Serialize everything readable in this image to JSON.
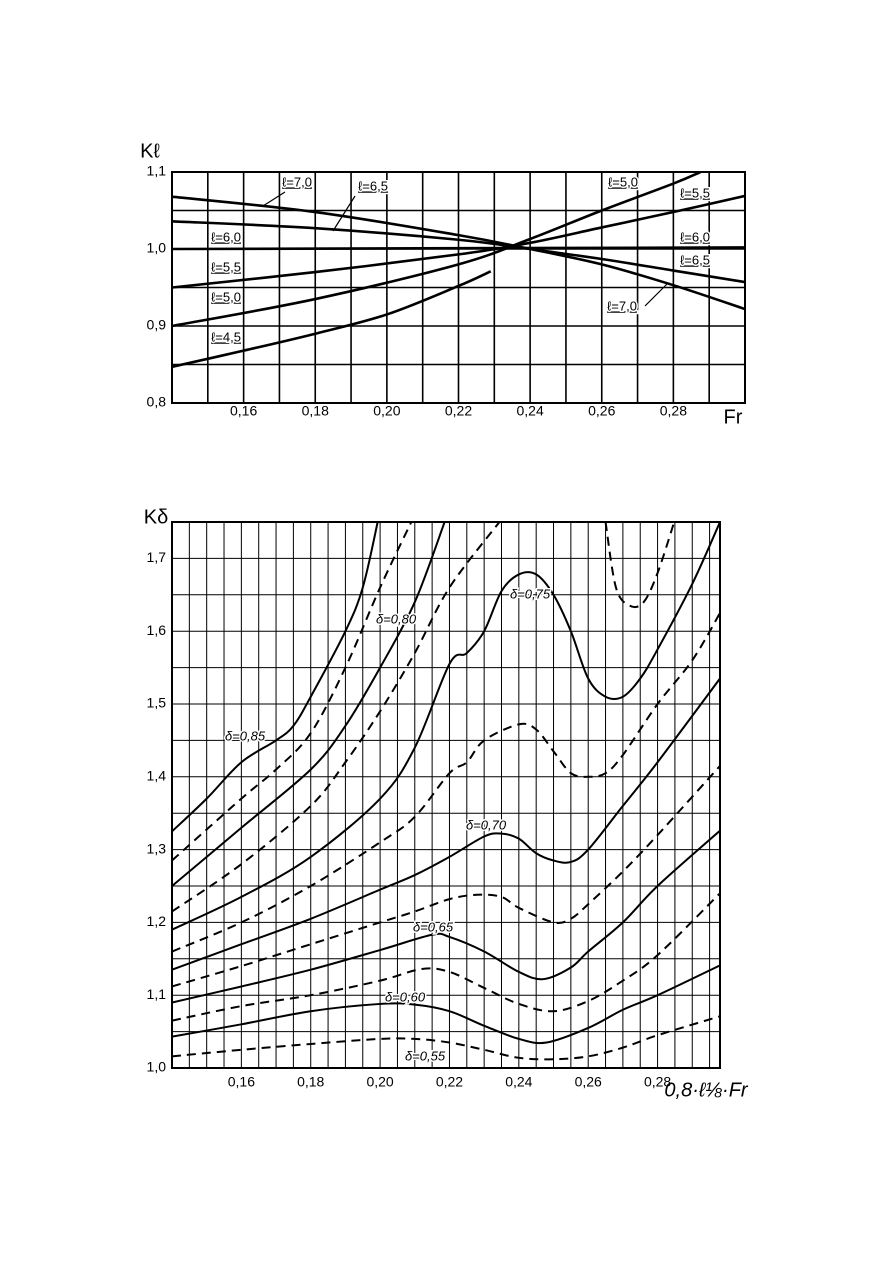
{
  "chart_data": [
    {
      "type": "line",
      "ylabel": "Kℓ",
      "xlabel": "Fr",
      "xlim": [
        0.14,
        0.3
      ],
      "ylim": [
        0.8,
        1.1
      ],
      "xticks": [
        {
          "value": 0.16,
          "label": "0,16"
        },
        {
          "value": 0.18,
          "label": "0,18"
        },
        {
          "value": 0.2,
          "label": "0,20"
        },
        {
          "value": 0.22,
          "label": "0,22"
        },
        {
          "value": 0.24,
          "label": "0,24"
        },
        {
          "value": 0.26,
          "label": "0,26"
        },
        {
          "value": 0.28,
          "label": "0,28"
        }
      ],
      "yticks": [
        {
          "value": 0.8,
          "label": "0,8"
        },
        {
          "value": 0.9,
          "label": "0,9"
        },
        {
          "value": 1.0,
          "label": "1,0"
        },
        {
          "value": 1.1,
          "label": "1,1"
        }
      ],
      "xgrid": [
        0.15,
        0.17,
        0.19,
        0.21,
        0.23,
        0.25,
        0.27,
        0.29
      ],
      "ygrid": [
        0.85,
        0.95,
        1.05
      ],
      "grid": true,
      "series": [
        {
          "name": "ℓ=7,0",
          "color": "#000",
          "x": [
            0.14,
            0.18,
            0.22,
            0.24,
            0.26,
            0.28,
            0.3
          ],
          "values": [
            1.068,
            1.048,
            1.018,
            1.0,
            0.98,
            0.953,
            0.922
          ]
        },
        {
          "name": "ℓ=6,5",
          "color": "#000",
          "x": [
            0.14,
            0.18,
            0.22,
            0.24,
            0.26,
            0.28,
            0.3
          ],
          "values": [
            1.036,
            1.027,
            1.012,
            1.0,
            0.987,
            0.972,
            0.957
          ]
        },
        {
          "name": "ℓ=6,0",
          "color": "#000",
          "x": [
            0.14,
            0.3
          ],
          "values": [
            1.0,
            1.002
          ]
        },
        {
          "name": "ℓ=5,5",
          "color": "#000",
          "x": [
            0.14,
            0.18,
            0.22,
            0.24,
            0.26,
            0.28,
            0.3
          ],
          "values": [
            0.95,
            0.97,
            0.993,
            1.008,
            1.028,
            1.048,
            1.069
          ]
        },
        {
          "name": "ℓ=5,0",
          "color": "#000",
          "x": [
            0.14,
            0.18,
            0.22,
            0.24,
            0.26,
            0.28,
            0.2876
          ],
          "values": [
            0.9,
            0.935,
            0.98,
            1.013,
            1.05,
            1.085,
            1.1
          ]
        },
        {
          "name": "ℓ=4,5",
          "color": "#000",
          "x": [
            0.14,
            0.16,
            0.18,
            0.2,
            0.22,
            0.229
          ],
          "values": [
            0.847,
            0.868,
            0.89,
            0.915,
            0.952,
            0.971
          ]
        }
      ]
    },
    {
      "type": "line",
      "ylabel": "Kδ",
      "xlabel": "0,8·ℓ⅛·Fr",
      "xlim": [
        0.14,
        0.298
      ],
      "ylim": [
        1.0,
        1.75
      ],
      "xticks": [
        {
          "value": 0.16,
          "label": "0,16"
        },
        {
          "value": 0.18,
          "label": "0,18"
        },
        {
          "value": 0.2,
          "label": "0,20"
        },
        {
          "value": 0.22,
          "label": "0,22"
        },
        {
          "value": 0.24,
          "label": "0,24"
        },
        {
          "value": 0.26,
          "label": "0,26"
        },
        {
          "value": 0.28,
          "label": "0,28"
        }
      ],
      "yticks": [
        {
          "value": 1.0,
          "label": "1,0"
        },
        {
          "value": 1.1,
          "label": "1,1"
        },
        {
          "value": 1.2,
          "label": "1,2"
        },
        {
          "value": 1.3,
          "label": "1,3"
        },
        {
          "value": 1.4,
          "label": "1,4"
        },
        {
          "value": 1.5,
          "label": "1,5"
        },
        {
          "value": 1.6,
          "label": "1,6"
        },
        {
          "value": 1.7,
          "label": "1,7"
        }
      ],
      "xgrid": [
        0.145,
        0.15,
        0.155,
        0.165,
        0.17,
        0.175,
        0.185,
        0.19,
        0.195,
        0.205,
        0.21,
        0.215,
        0.225,
        0.23,
        0.235,
        0.245,
        0.25,
        0.255,
        0.265,
        0.27,
        0.275,
        0.285,
        0.29,
        0.295
      ],
      "ygrid": [
        1.05,
        1.15,
        1.25,
        1.35,
        1.45,
        1.55,
        1.65
      ],
      "grid": true,
      "series": [
        {
          "name": "δ=0,85",
          "color": "#000",
          "x": [
            0.14,
            0.15,
            0.16,
            0.17,
            0.175,
            0.18,
            0.19,
            0.195,
            0.1993
          ],
          "values": [
            1.325,
            1.37,
            1.42,
            1.45,
            1.47,
            1.51,
            1.6,
            1.66,
            1.75
          ]
        },
        {
          "color": "#000",
          "dash": true,
          "x": [
            0.14,
            0.16,
            0.17,
            0.18,
            0.19,
            0.2,
            0.209
          ],
          "values": [
            1.285,
            1.37,
            1.41,
            1.46,
            1.55,
            1.66,
            1.75
          ]
        },
        {
          "name": "δ=0,80",
          "color": "#000",
          "x": [
            0.14,
            0.16,
            0.18,
            0.19,
            0.2,
            0.21,
            0.2186
          ],
          "values": [
            1.25,
            1.33,
            1.41,
            1.47,
            1.55,
            1.64,
            1.75
          ]
        },
        {
          "color": "#000",
          "dash": true,
          "x": [
            0.14,
            0.16,
            0.18,
            0.19,
            0.2,
            0.21,
            0.22,
            0.2344,
            null,
            0.265,
            0.268,
            0.272,
            0.276,
            0.28,
            0.2848
          ],
          "values": [
            1.215,
            1.28,
            1.36,
            1.42,
            1.49,
            1.57,
            1.66,
            1.75,
            null,
            1.75,
            1.66,
            1.635,
            1.64,
            1.68,
            1.75
          ]
        },
        {
          "name": "δ=0,75",
          "color": "#000",
          "x": [
            0.14,
            0.16,
            0.18,
            0.2,
            0.21,
            0.22,
            0.225,
            0.23,
            0.235,
            0.24,
            0.245,
            0.25,
            0.255,
            0.26,
            0.265,
            0.27,
            0.275,
            0.28,
            0.29,
            0.298
          ],
          "values": [
            1.19,
            1.235,
            1.29,
            1.37,
            1.44,
            1.555,
            1.57,
            1.6,
            1.655,
            1.678,
            1.678,
            1.65,
            1.6,
            1.535,
            1.51,
            1.51,
            1.535,
            1.575,
            1.665,
            1.75
          ]
        },
        {
          "color": "#000",
          "dash": true,
          "x": [
            0.14,
            0.16,
            0.18,
            0.2,
            0.21,
            0.22,
            0.225,
            0.23,
            0.24,
            0.245,
            0.25,
            0.255,
            0.26,
            0.265,
            0.27,
            0.28,
            0.29,
            0.298
          ],
          "values": [
            1.16,
            1.2,
            1.25,
            1.31,
            1.345,
            1.405,
            1.42,
            1.45,
            1.472,
            1.465,
            1.435,
            1.405,
            1.4,
            1.405,
            1.43,
            1.5,
            1.56,
            1.625
          ]
        },
        {
          "name": "δ=0,70",
          "color": "#000",
          "x": [
            0.14,
            0.16,
            0.18,
            0.2,
            0.21,
            0.22,
            0.23,
            0.235,
            0.24,
            0.245,
            0.25,
            0.255,
            0.26,
            0.27,
            0.28,
            0.298
          ],
          "values": [
            1.135,
            1.17,
            1.205,
            1.245,
            1.265,
            1.29,
            1.318,
            1.322,
            1.315,
            1.295,
            1.285,
            1.283,
            1.3,
            1.36,
            1.42,
            1.535
          ]
        },
        {
          "color": "#000",
          "dash": true,
          "x": [
            0.14,
            0.16,
            0.18,
            0.2,
            0.21,
            0.22,
            0.228,
            0.235,
            0.24,
            0.25,
            0.255,
            0.26,
            0.27,
            0.28,
            0.298
          ],
          "values": [
            1.112,
            1.14,
            1.17,
            1.2,
            1.215,
            1.232,
            1.238,
            1.235,
            1.22,
            1.2,
            1.205,
            1.225,
            1.27,
            1.32,
            1.415
          ]
        },
        {
          "name": "δ=0,65",
          "color": "#000",
          "x": [
            0.14,
            0.16,
            0.18,
            0.2,
            0.215,
            0.22,
            0.23,
            0.24,
            0.247,
            0.255,
            0.26,
            0.27,
            0.28,
            0.298
          ],
          "values": [
            1.09,
            1.112,
            1.135,
            1.162,
            1.183,
            1.18,
            1.16,
            1.132,
            1.122,
            1.138,
            1.16,
            1.2,
            1.25,
            1.326
          ]
        },
        {
          "color": "#000",
          "dash": true,
          "x": [
            0.14,
            0.16,
            0.18,
            0.2,
            0.212,
            0.22,
            0.23,
            0.24,
            0.25,
            0.26,
            0.27,
            0.28,
            0.298
          ],
          "values": [
            1.065,
            1.085,
            1.1,
            1.12,
            1.136,
            1.132,
            1.11,
            1.088,
            1.078,
            1.092,
            1.12,
            1.155,
            1.24
          ]
        },
        {
          "name": "δ=0,60",
          "color": "#000",
          "x": [
            0.14,
            0.16,
            0.18,
            0.2,
            0.21,
            0.22,
            0.23,
            0.24,
            0.248,
            0.26,
            0.27,
            0.28,
            0.298
          ],
          "values": [
            1.043,
            1.06,
            1.078,
            1.088,
            1.087,
            1.078,
            1.058,
            1.04,
            1.035,
            1.055,
            1.08,
            1.1,
            1.141
          ]
        },
        {
          "name": "δ=0,55",
          "color": "#000",
          "dash": true,
          "x": [
            0.14,
            0.16,
            0.18,
            0.2,
            0.21,
            0.22,
            0.23,
            0.24,
            0.25,
            0.26,
            0.27,
            0.28,
            0.298
          ],
          "values": [
            1.016,
            1.025,
            1.033,
            1.04,
            1.04,
            1.035,
            1.025,
            1.014,
            1.012,
            1.016,
            1.028,
            1.045,
            1.071
          ]
        }
      ]
    }
  ]
}
